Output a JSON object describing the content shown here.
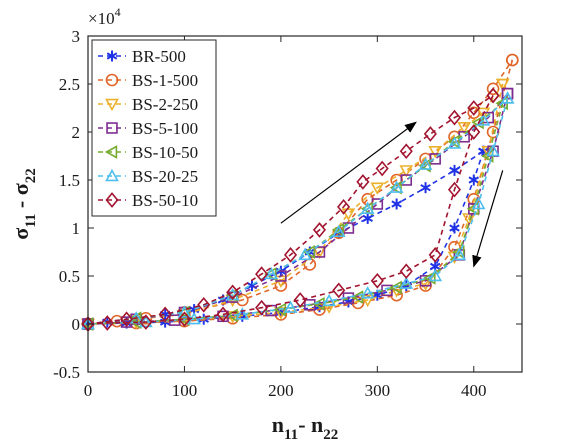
{
  "chart_data": {
    "type": "line",
    "x_label": "n11- n22",
    "y_label": "σ11 - σ22",
    "y_multiplier": "×10^4",
    "xlim": [
      0,
      450
    ],
    "ylim": [
      -0.5,
      3
    ],
    "x_ticks": [
      0,
      100,
      200,
      300,
      400
    ],
    "y_ticks": [
      -0.5,
      0,
      0.5,
      1,
      1.5,
      2,
      2.5,
      3
    ],
    "y_tick_labels": [
      "-0.5",
      "0",
      "0.5",
      "1",
      "1.5",
      "2",
      "2.5",
      "3"
    ],
    "grid": false,
    "legend_position": "top-left",
    "series": [
      {
        "name": "BR-500",
        "color": "#1f32e6",
        "marker": "star",
        "dashed": true,
        "loading": [
          [
            0,
            0
          ],
          [
            20,
            0.02
          ],
          [
            50,
            0.05
          ],
          [
            80,
            0.1
          ],
          [
            110,
            0.15
          ],
          [
            140,
            0.25
          ],
          [
            170,
            0.4
          ],
          [
            200,
            0.55
          ],
          [
            230,
            0.75
          ],
          [
            260,
            0.95
          ],
          [
            290,
            1.1
          ],
          [
            320,
            1.25
          ],
          [
            350,
            1.42
          ],
          [
            380,
            1.6
          ],
          [
            410,
            1.8
          ]
        ],
        "unloading": [
          [
            410,
            1.8
          ],
          [
            400,
            1.5
          ],
          [
            380,
            1.0
          ],
          [
            360,
            0.6
          ],
          [
            330,
            0.4
          ],
          [
            300,
            0.3
          ],
          [
            270,
            0.23
          ],
          [
            240,
            0.18
          ],
          [
            200,
            0.12
          ],
          [
            160,
            0.08
          ],
          [
            120,
            0.05
          ],
          [
            80,
            0.02
          ],
          [
            40,
            0.01
          ],
          [
            0,
            0
          ]
        ]
      },
      {
        "name": "BS-1-500",
        "color": "#e0662a",
        "marker": "circle",
        "dashed": true,
        "loading": [
          [
            0,
            0
          ],
          [
            30,
            0.03
          ],
          [
            60,
            0.06
          ],
          [
            100,
            0.12
          ],
          [
            160,
            0.25
          ],
          [
            200,
            0.4
          ],
          [
            230,
            0.62
          ],
          [
            260,
            0.95
          ],
          [
            290,
            1.3
          ],
          [
            320,
            1.5
          ],
          [
            350,
            1.72
          ],
          [
            380,
            1.95
          ],
          [
            400,
            2.2
          ],
          [
            420,
            2.45
          ],
          [
            440,
            2.75
          ]
        ],
        "unloading": [
          [
            440,
            2.75
          ],
          [
            420,
            2.0
          ],
          [
            400,
            1.3
          ],
          [
            380,
            0.8
          ],
          [
            350,
            0.4
          ],
          [
            320,
            0.3
          ],
          [
            280,
            0.22
          ],
          [
            240,
            0.15
          ],
          [
            200,
            0.1
          ],
          [
            150,
            0.06
          ],
          [
            100,
            0.03
          ],
          [
            50,
            0.01
          ],
          [
            0,
            0
          ]
        ]
      },
      {
        "name": "BS-2-250",
        "color": "#ecb12c",
        "marker": "triangle-down",
        "dashed": true,
        "loading": [
          [
            0,
            0
          ],
          [
            50,
            0.05
          ],
          [
            100,
            0.1
          ],
          [
            150,
            0.25
          ],
          [
            200,
            0.45
          ],
          [
            240,
            0.75
          ],
          [
            270,
            1.15
          ],
          [
            300,
            1.42
          ],
          [
            330,
            1.6
          ],
          [
            360,
            1.8
          ],
          [
            390,
            2.05
          ],
          [
            410,
            2.2
          ],
          [
            430,
            2.5
          ]
        ],
        "unloading": [
          [
            430,
            2.5
          ],
          [
            415,
            1.8
          ],
          [
            395,
            1.1
          ],
          [
            380,
            0.7
          ],
          [
            350,
            0.42
          ],
          [
            320,
            0.35
          ],
          [
            290,
            0.25
          ],
          [
            250,
            0.18
          ],
          [
            200,
            0.12
          ],
          [
            150,
            0.08
          ],
          [
            100,
            0.04
          ],
          [
            50,
            0.02
          ],
          [
            0,
            0
          ]
        ]
      },
      {
        "name": "BS-5-100",
        "color": "#7d2c90",
        "marker": "square",
        "dashed": true,
        "loading": [
          [
            0,
            0
          ],
          [
            50,
            0.05
          ],
          [
            100,
            0.12
          ],
          [
            150,
            0.28
          ],
          [
            200,
            0.5
          ],
          [
            240,
            0.75
          ],
          [
            270,
            1.0
          ],
          [
            300,
            1.25
          ],
          [
            330,
            1.5
          ],
          [
            360,
            1.72
          ],
          [
            390,
            1.95
          ],
          [
            415,
            2.15
          ],
          [
            435,
            2.4
          ]
        ],
        "unloading": [
          [
            435,
            2.4
          ],
          [
            420,
            1.8
          ],
          [
            400,
            1.2
          ],
          [
            385,
            0.72
          ],
          [
            350,
            0.45
          ],
          [
            310,
            0.35
          ],
          [
            270,
            0.27
          ],
          [
            230,
            0.2
          ],
          [
            190,
            0.14
          ],
          [
            140,
            0.08
          ],
          [
            90,
            0.04
          ],
          [
            40,
            0.02
          ],
          [
            0,
            0
          ]
        ]
      },
      {
        "name": "BS-10-50",
        "color": "#77ac30",
        "marker": "triangle-left",
        "dashed": true,
        "loading": [
          [
            0,
            0
          ],
          [
            50,
            0.06
          ],
          [
            100,
            0.12
          ],
          [
            150,
            0.3
          ],
          [
            190,
            0.52
          ],
          [
            230,
            0.75
          ],
          [
            260,
            0.98
          ],
          [
            290,
            1.2
          ],
          [
            320,
            1.42
          ],
          [
            350,
            1.65
          ],
          [
            380,
            1.9
          ],
          [
            405,
            2.1
          ],
          [
            430,
            2.3
          ]
        ],
        "unloading": [
          [
            430,
            2.3
          ],
          [
            415,
            1.75
          ],
          [
            400,
            1.2
          ],
          [
            385,
            0.75
          ],
          [
            355,
            0.48
          ],
          [
            320,
            0.38
          ],
          [
            280,
            0.28
          ],
          [
            240,
            0.21
          ],
          [
            200,
            0.15
          ],
          [
            150,
            0.09
          ],
          [
            100,
            0.05
          ],
          [
            50,
            0.02
          ],
          [
            0,
            0
          ]
        ]
      },
      {
        "name": "BS-20-25",
        "color": "#4dbeee",
        "marker": "triangle-up",
        "dashed": true,
        "loading": [
          [
            0,
            0
          ],
          [
            50,
            0.06
          ],
          [
            100,
            0.12
          ],
          [
            150,
            0.3
          ],
          [
            190,
            0.52
          ],
          [
            225,
            0.72
          ],
          [
            260,
            0.96
          ],
          [
            290,
            1.2
          ],
          [
            320,
            1.42
          ],
          [
            350,
            1.66
          ],
          [
            380,
            1.88
          ],
          [
            410,
            2.12
          ],
          [
            435,
            2.35
          ]
        ],
        "unloading": [
          [
            435,
            2.35
          ],
          [
            420,
            1.8
          ],
          [
            405,
            1.25
          ],
          [
            385,
            0.72
          ],
          [
            360,
            0.5
          ],
          [
            330,
            0.42
          ],
          [
            290,
            0.32
          ],
          [
            250,
            0.24
          ],
          [
            210,
            0.17
          ],
          [
            160,
            0.1
          ],
          [
            110,
            0.05
          ],
          [
            60,
            0.02
          ],
          [
            0,
            0
          ]
        ]
      },
      {
        "name": "BS-50-10",
        "color": "#a2142f",
        "marker": "diamond",
        "dashed": true,
        "loading": [
          [
            0,
            0
          ],
          [
            40,
            0.05
          ],
          [
            80,
            0.1
          ],
          [
            120,
            0.2
          ],
          [
            150,
            0.33
          ],
          [
            180,
            0.52
          ],
          [
            210,
            0.72
          ],
          [
            240,
            0.98
          ],
          [
            265,
            1.22
          ],
          [
            285,
            1.48
          ],
          [
            305,
            1.62
          ],
          [
            330,
            1.8
          ],
          [
            355,
            1.98
          ],
          [
            380,
            2.15
          ],
          [
            400,
            2.25
          ],
          [
            420,
            2.38
          ]
        ],
        "unloading": [
          [
            420,
            2.38
          ],
          [
            400,
            2.0
          ],
          [
            380,
            1.4
          ],
          [
            360,
            0.72
          ],
          [
            330,
            0.55
          ],
          [
            300,
            0.45
          ],
          [
            260,
            0.35
          ],
          [
            220,
            0.25
          ],
          [
            180,
            0.17
          ],
          [
            140,
            0.1
          ],
          [
            100,
            0.05
          ],
          [
            60,
            0.02
          ],
          [
            20,
            0.01
          ],
          [
            0,
            0
          ]
        ]
      }
    ]
  }
}
